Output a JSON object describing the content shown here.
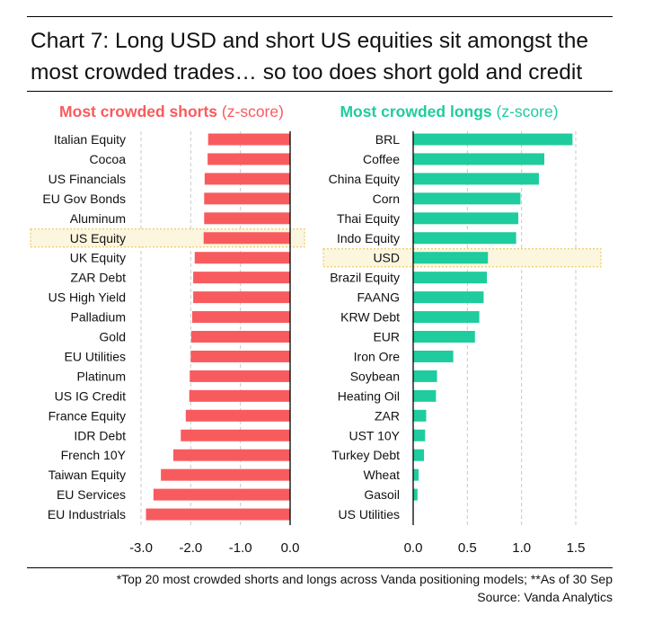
{
  "title": "Chart 7: Long USD and short US equities sit amongst the most crowded trades… so too does short gold and credit",
  "footnote": "*Top 20 most crowded shorts and longs across Vanda positioning models; **As of 30 Sep",
  "source": "Source: Vanda Analytics",
  "colors": {
    "shorts": "#f85b5e",
    "longs": "#1fcc9d",
    "highlight_border": "#e3c24a",
    "highlight_fill": "#fdf6de",
    "grid": "#c8c8c8"
  },
  "chart_data": [
    {
      "type": "bar",
      "orientation": "horizontal",
      "title_bold": "Most crowded shorts",
      "title_suffix": " (z-score)",
      "xlim": [
        -3.0,
        0.0
      ],
      "ticks": [
        -3.0,
        -2.0,
        -1.0,
        0.0
      ],
      "tick_labels": [
        "-3.0",
        "-2.0",
        "-1.0",
        "0.0"
      ],
      "highlight": "US Equity",
      "categories": [
        "Italian Equity",
        "Cocoa",
        "US Financials",
        "EU Gov Bonds",
        "Aluminum",
        "US Equity",
        "UK Equity",
        "ZAR Debt",
        "US High Yield",
        "Palladium",
        "Gold",
        "EU Utilities",
        "Platinum",
        "US IG Credit",
        "France Equity",
        "IDR Debt",
        "French 10Y",
        "Taiwan Equity",
        "EU Services",
        "EU Industrials"
      ],
      "values": [
        -1.65,
        -1.66,
        -1.72,
        -1.73,
        -1.73,
        -1.74,
        -1.92,
        -1.95,
        -1.95,
        -1.97,
        -1.99,
        -2.0,
        -2.02,
        -2.03,
        -2.1,
        -2.2,
        -2.35,
        -2.6,
        -2.75,
        -2.9
      ]
    },
    {
      "type": "bar",
      "orientation": "horizontal",
      "title_bold": "Most crowded longs",
      "title_suffix": " (z-score)",
      "xlim": [
        0.0,
        1.5
      ],
      "ticks": [
        0.0,
        0.5,
        1.0,
        1.5
      ],
      "tick_labels": [
        "0.0",
        "0.5",
        "1.0",
        "1.5"
      ],
      "highlight": "USD",
      "categories": [
        "BRL",
        "Coffee",
        "China Equity",
        "Corn",
        "Thai Equity",
        "Indo Equity",
        "USD",
        "Brazil Equity",
        "FAANG",
        "KRW Debt",
        "EUR",
        "Iron Ore",
        "Soybean",
        "Heating Oil",
        "ZAR",
        "UST 10Y",
        "Turkey Debt",
        "Wheat",
        "Gasoil",
        "US Utilities"
      ],
      "values": [
        1.47,
        1.21,
        1.16,
        0.99,
        0.97,
        0.95,
        0.69,
        0.68,
        0.65,
        0.61,
        0.57,
        0.37,
        0.22,
        0.21,
        0.12,
        0.11,
        0.1,
        0.05,
        0.04,
        0.0
      ]
    }
  ]
}
